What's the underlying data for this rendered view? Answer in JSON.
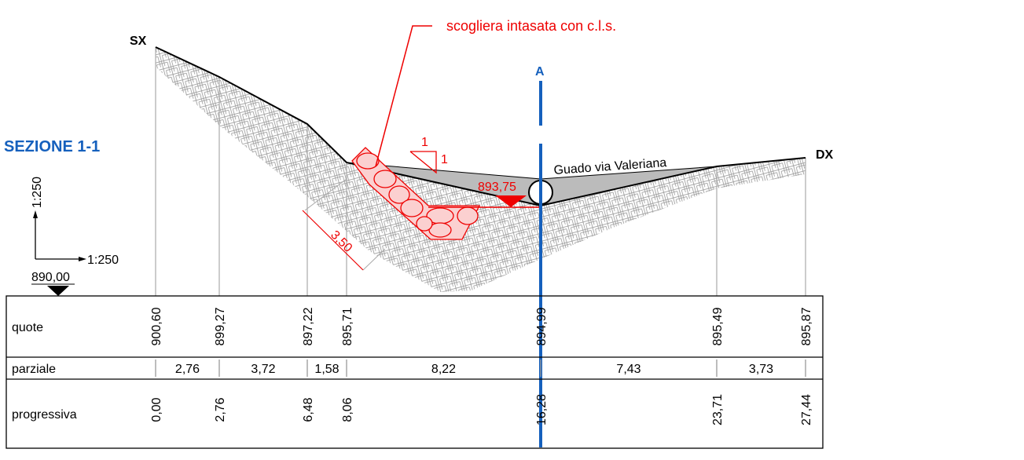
{
  "title": "SEZIONE 1-1",
  "annotations": {
    "note": "scogliera intasata con c.l.s.",
    "left": "SX",
    "right": "DX",
    "axis": "A",
    "road": "Guado via Valeriana",
    "water_level": "893,75",
    "thickness": "3,50",
    "slope_v": "1",
    "slope_h": "1",
    "scale_v": "1:250",
    "scale_h": "1:250",
    "datum": "890,00"
  },
  "table": {
    "rows": [
      {
        "label": "quote",
        "values": [
          "900,60",
          "899,27",
          "897,22",
          "895,71",
          "894,99",
          "895,49",
          "895,87"
        ]
      },
      {
        "label": "parziale",
        "values": [
          "2,76",
          "3,72",
          "1,58",
          "8,22",
          "7,43",
          "3,73"
        ]
      },
      {
        "label": "progressiva",
        "values": [
          "0,00",
          "2,76",
          "6,48",
          "8,06",
          "16,28",
          "23,71",
          "27,44"
        ]
      }
    ]
  }
}
